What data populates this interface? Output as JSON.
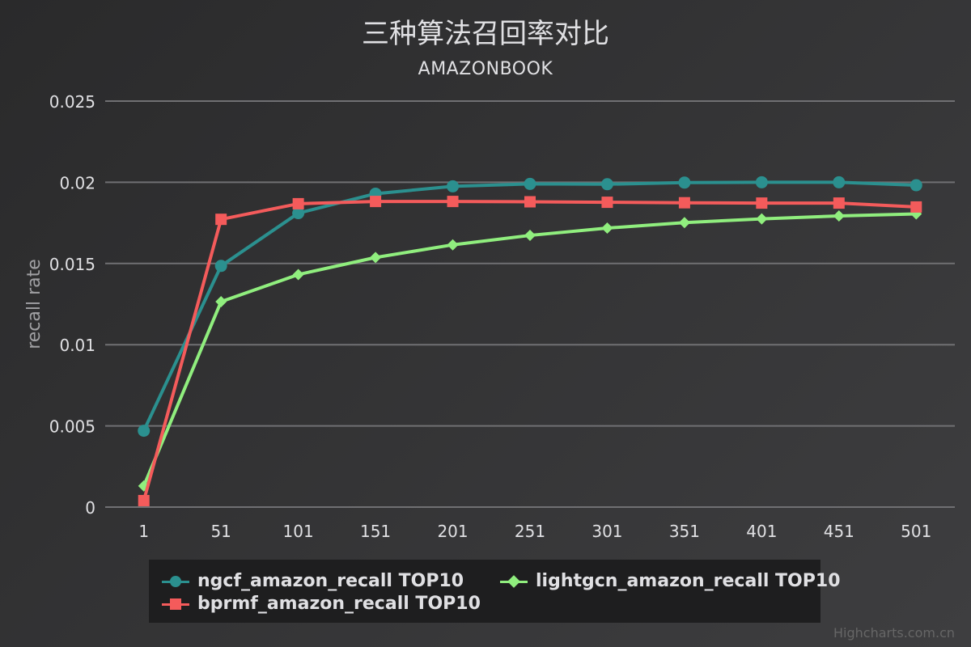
{
  "chart_data": {
    "type": "line",
    "title": "三种算法召回率对比",
    "subtitle": "AMAZONBOOK",
    "ylabel": "recall rate",
    "xlabel": "",
    "categories": [
      "1",
      "51",
      "101",
      "151",
      "201",
      "251",
      "301",
      "351",
      "401",
      "451",
      "501"
    ],
    "ylim": [
      0,
      0.025
    ],
    "yticks": [
      "0",
      "0.005",
      "0.01",
      "0.015",
      "0.02",
      "0.025"
    ],
    "grid": true,
    "legend_position": "bottom-center",
    "series": [
      {
        "name": "ngcf_amazon_recall TOP10",
        "color": "#2b908f",
        "marker": "circle",
        "values": [
          0.0047,
          0.01485,
          0.0181,
          0.0193,
          0.01975,
          0.0199,
          0.01988,
          0.01998,
          0.02,
          0.02,
          0.01982
        ]
      },
      {
        "name": "lightgcn_amazon_recall TOP10",
        "color": "#90ee7e",
        "marker": "diamond",
        "values": [
          0.0013,
          0.01265,
          0.01432,
          0.01537,
          0.01615,
          0.01673,
          0.01718,
          0.01752,
          0.01775,
          0.01793,
          0.01805
        ]
      },
      {
        "name": "bprmf_amazon_recall TOP10",
        "color": "#f45b5b",
        "marker": "square",
        "values": [
          0.0004,
          0.01772,
          0.01868,
          0.01882,
          0.01882,
          0.0188,
          0.01877,
          0.01874,
          0.01872,
          0.01872,
          0.01848
        ]
      }
    ]
  },
  "credits": "Highcharts.com.cn"
}
